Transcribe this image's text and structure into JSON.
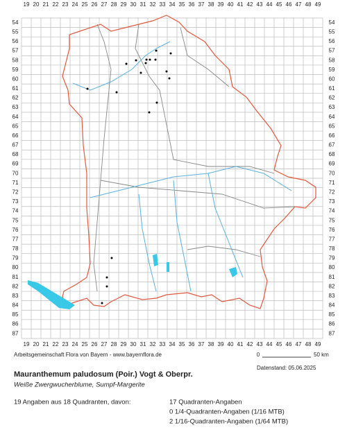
{
  "x_labels": [
    19,
    20,
    21,
    22,
    23,
    24,
    25,
    26,
    27,
    28,
    29,
    30,
    31,
    32,
    33,
    34,
    35,
    36,
    37,
    38,
    39,
    40,
    41,
    42,
    43,
    44,
    45,
    46,
    47,
    48,
    49
  ],
  "y_labels": [
    54,
    55,
    56,
    57,
    58,
    59,
    60,
    61,
    62,
    63,
    64,
    65,
    66,
    67,
    68,
    69,
    70,
    71,
    72,
    73,
    74,
    75,
    76,
    77,
    78,
    79,
    80,
    81,
    82,
    83,
    84,
    85,
    86,
    87
  ],
  "credit": "Arbeitsgemeinschaft Flora von Bayern - www.bayernflora.de",
  "scale": {
    "start": 0,
    "end": "50 km"
  },
  "date": "Datenstand: 05.06.2025",
  "title": "Mauranthemum paludosum (Poir.) Vogt & Oberpr.",
  "subtitle": "Weiße Zwergwucherblume, Sumpf-Margerite",
  "summary": "19 Angaben aus 18 Quadranten, davon:",
  "breakdown": [
    "17 Quadranten-Angaben",
    "0 1/4-Quadranten-Angaben (1/16 MTB)",
    "2 1/16-Quadranten-Angaben (1/64 MTB)"
  ]
}
